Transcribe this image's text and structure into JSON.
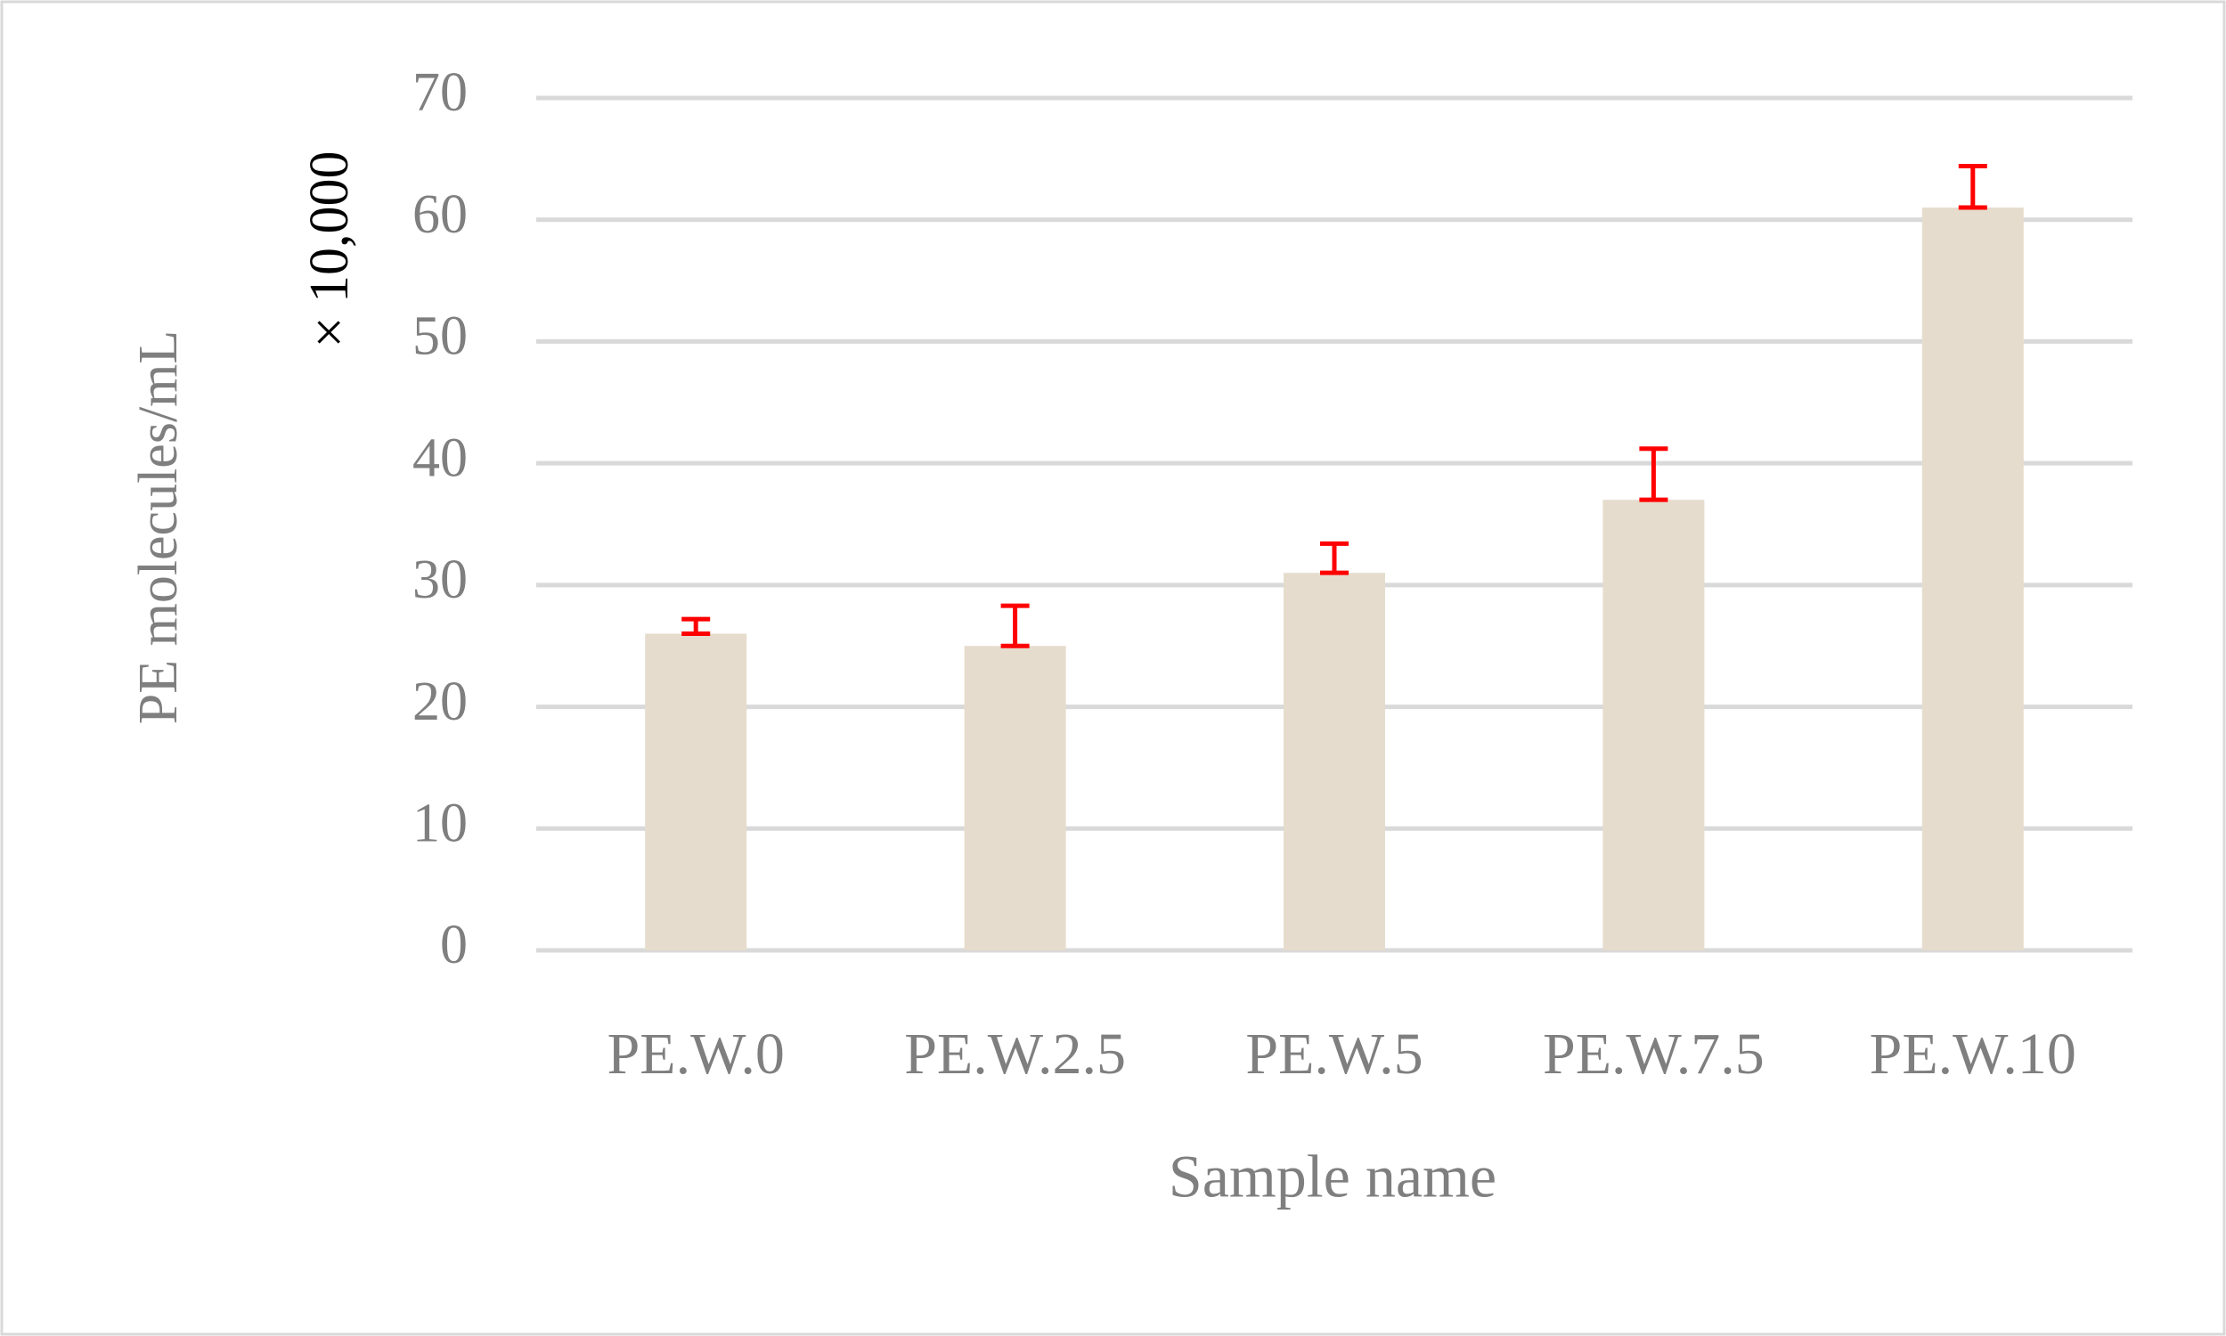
{
  "chart_data": {
    "type": "bar",
    "x_label": "Sample name",
    "y_label": "PE molecules/mL",
    "y_multiplier": "× 10,000",
    "categories": [
      "PE.W.0",
      "PE.W.2.5",
      "PE.W.5",
      "PE.W.7.5",
      "PE.W.10"
    ],
    "values": [
      26,
      25,
      31,
      37,
      61
    ],
    "errors": [
      1.2,
      3.3,
      2.4,
      4.2,
      3.4
    ],
    "color": "#e6dccd",
    "error_color": "#ff0000",
    "ylim": [
      0,
      70
    ],
    "yticks": [
      0,
      10,
      20,
      30,
      40,
      50,
      60,
      70
    ],
    "grid": true
  }
}
